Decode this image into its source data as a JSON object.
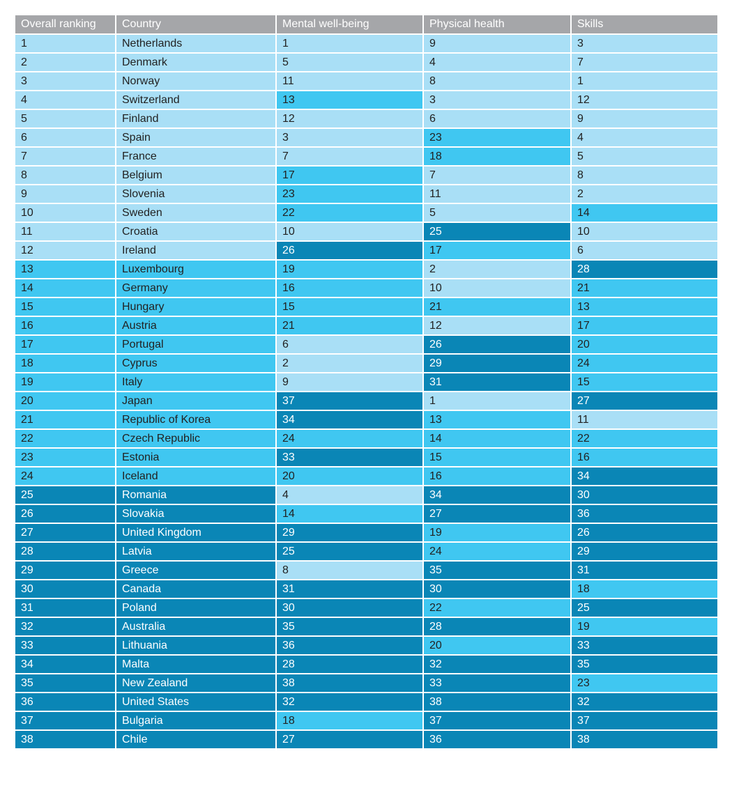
{
  "chart_data": {
    "type": "table",
    "columns": [
      "Overall ranking",
      "Country",
      "Mental well-being",
      "Physical health",
      "Skills"
    ],
    "rows": [
      [
        1,
        "Netherlands",
        1,
        9,
        3
      ],
      [
        2,
        "Denmark",
        5,
        4,
        7
      ],
      [
        3,
        "Norway",
        11,
        8,
        1
      ],
      [
        4,
        "Switzerland",
        13,
        3,
        12
      ],
      [
        5,
        "Finland",
        12,
        6,
        9
      ],
      [
        6,
        "Spain",
        3,
        23,
        4
      ],
      [
        7,
        "France",
        7,
        18,
        5
      ],
      [
        8,
        "Belgium",
        17,
        7,
        8
      ],
      [
        9,
        "Slovenia",
        23,
        11,
        2
      ],
      [
        10,
        "Sweden",
        22,
        5,
        14
      ],
      [
        11,
        "Croatia",
        10,
        25,
        10
      ],
      [
        12,
        "Ireland",
        26,
        17,
        6
      ],
      [
        13,
        "Luxembourg",
        19,
        2,
        28
      ],
      [
        14,
        "Germany",
        16,
        10,
        21
      ],
      [
        15,
        "Hungary",
        15,
        21,
        13
      ],
      [
        16,
        "Austria",
        21,
        12,
        17
      ],
      [
        17,
        "Portugal",
        6,
        26,
        20
      ],
      [
        18,
        "Cyprus",
        2,
        29,
        24
      ],
      [
        19,
        "Italy",
        9,
        31,
        15
      ],
      [
        20,
        "Japan",
        37,
        1,
        27
      ],
      [
        21,
        "Republic of Korea",
        34,
        13,
        11
      ],
      [
        22,
        "Czech Republic",
        24,
        14,
        22
      ],
      [
        23,
        "Estonia",
        33,
        15,
        16
      ],
      [
        24,
        "Iceland",
        20,
        16,
        34
      ],
      [
        25,
        "Romania",
        4,
        34,
        30
      ],
      [
        26,
        "Slovakia",
        14,
        27,
        36
      ],
      [
        27,
        "United Kingdom",
        29,
        19,
        26
      ],
      [
        28,
        "Latvia",
        25,
        24,
        29
      ],
      [
        29,
        "Greece",
        8,
        35,
        31
      ],
      [
        30,
        "Canada",
        31,
        30,
        18
      ],
      [
        31,
        "Poland",
        30,
        22,
        25
      ],
      [
        32,
        "Australia",
        35,
        28,
        19
      ],
      [
        33,
        "Lithuania",
        36,
        20,
        33
      ],
      [
        34,
        "Malta",
        28,
        32,
        35
      ],
      [
        35,
        "New Zealand",
        38,
        33,
        23
      ],
      [
        36,
        "United States",
        32,
        38,
        32
      ],
      [
        37,
        "Bulgaria",
        18,
        37,
        37
      ],
      [
        38,
        "Chile",
        27,
        36,
        38
      ]
    ],
    "colors": {
      "header": "#a5a6a9",
      "tier_1": "#a9dff6",
      "tier_2": "#40c7f1",
      "tier_3": "#0a86b6"
    }
  }
}
